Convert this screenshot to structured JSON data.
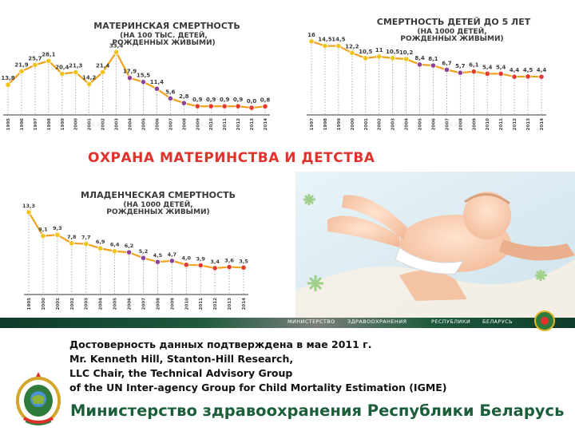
{
  "banner": "ОХРАНА МАТЕРИНСТВА И ДЕТСТВА",
  "ministry_strip": [
    "МИНИСТЕРСТВО",
    "ЗДРАВООХРАНЕНИЯ",
    "РЕСПУБЛИКИ",
    "БЕЛАРУСЬ"
  ],
  "citation": {
    "line1": "Достоверность данных подтверждена в мае 2011 г.",
    "line2": "Mr. Kenneth Hill, Stanton-Hill Research,",
    "line3": "LLC Chair, the Technical Advisory Group",
    "line4": "of the UN Inter-agency Group for Child Mortality Estimation (IGME)"
  },
  "footer_title": "Министерство здравоохранения Республики Беларусь",
  "colors": {
    "banner": "#e0312b",
    "footer": "#1b5e3a",
    "point_early": "#f2c318",
    "point_mid": "#8f4396",
    "point_late": "#e23b2b",
    "line": "#f2a21b"
  },
  "chart_data": [
    {
      "type": "line",
      "title": "МАТЕРИНСКАЯ СМЕРТНОСТЬ",
      "subtitle": "(НА 100 ТЫС. ДЕТЕЙ, РОЖДЕННЫХ ЖИВЫМИ)",
      "x": [
        "1995",
        "1996",
        "1997",
        "1998",
        "1999",
        "2000",
        "2001",
        "2002",
        "2003",
        "2004",
        "2005",
        "2006",
        "2007",
        "2008",
        "2009",
        "2010",
        "2011",
        "2012",
        "2013",
        "2014"
      ],
      "values": [
        13.8,
        21.9,
        25.7,
        28.1,
        20.4,
        21.3,
        14.2,
        21.4,
        33.4,
        17.9,
        15.5,
        11.4,
        5.6,
        2.8,
        0.9,
        0.9,
        0.9,
        0.9,
        0.0,
        0.8
      ],
      "labels": [
        "13,8",
        "21,9",
        "25,7",
        "28,1",
        "20,4",
        "21,3",
        "14,2",
        "21,4",
        "33,4",
        "17,9",
        "15,5",
        "11,4",
        "5,6",
        "2,8",
        "0,9",
        "0,9",
        "0,9",
        "0,9",
        "0,0",
        "0,8"
      ],
      "ylim": [
        0,
        35
      ]
    },
    {
      "type": "line",
      "title": "СМЕРТНОСТЬ ДЕТЕЙ ДО 5 ЛЕТ",
      "subtitle": "(НА 1000 ДЕТЕЙ, РОЖДЕННЫХ ЖИВЫМИ)",
      "x": [
        "1997",
        "1998",
        "1999",
        "2000",
        "2001",
        "2002",
        "2003",
        "2004",
        "2005",
        "2006",
        "2007",
        "2008",
        "2009",
        "2010",
        "2011",
        "2012",
        "2013",
        "2014"
      ],
      "values": [
        16,
        14.5,
        14.5,
        12.2,
        10.5,
        11,
        10.5,
        10.2,
        8.4,
        8.1,
        6.7,
        5.7,
        6.1,
        5.4,
        5.4,
        4.4,
        4.5,
        4.4
      ],
      "labels": [
        "16",
        "14,5",
        "14,5",
        "12,2",
        "10,5",
        "11",
        "10,5",
        "10,2",
        "8,4",
        "8,1",
        "6,7",
        "5,7",
        "6,1",
        "5,4",
        "5,4",
        "4,4",
        "4,5",
        "4,4"
      ],
      "ylim": [
        0,
        17
      ]
    },
    {
      "type": "line",
      "title": "МЛАДЕНЧЕСКАЯ СМЕРТНОСТЬ",
      "subtitle": "(НА 1000 ДЕТЕЙ, РОЖДЕННЫХ ЖИВЫМИ)",
      "x": [
        "1995",
        "2000",
        "2001",
        "2002",
        "2003",
        "2004",
        "2005",
        "2006",
        "2007",
        "2008",
        "2009",
        "2010",
        "2011",
        "2012",
        "2013",
        "2014"
      ],
      "values": [
        13.3,
        9.1,
        9.3,
        7.8,
        7.7,
        6.9,
        6.4,
        6.2,
        5.2,
        4.5,
        4.7,
        4.0,
        3.9,
        3.4,
        3.6,
        3.5
      ],
      "labels": [
        "13,3",
        "9,1",
        "9,3",
        "7,8",
        "7,7",
        "6,9",
        "6,4",
        "6,2",
        "5,2",
        "4,5",
        "4,7",
        "4,0",
        "3,9",
        "3,4",
        "3,6",
        "3,5"
      ],
      "ylim": [
        0,
        14
      ]
    }
  ]
}
